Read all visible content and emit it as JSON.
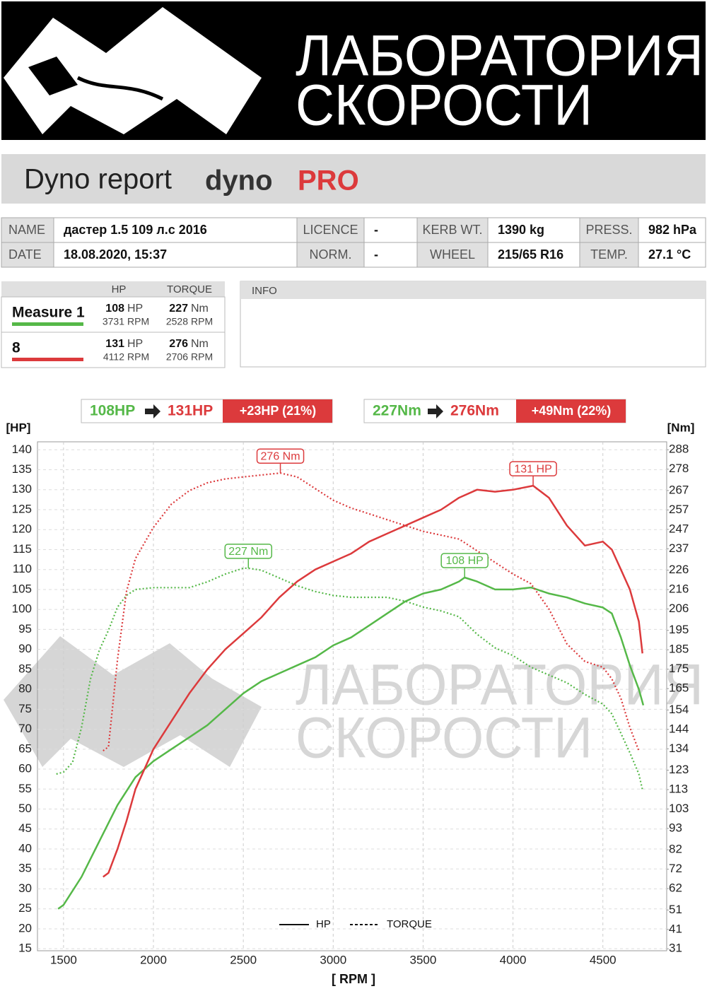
{
  "header": {
    "brand_line1": "ЛАБОРАТОРИЯ",
    "brand_line2": "СКОРОСТИ"
  },
  "report": {
    "title": "Dyno report",
    "brand_a": "dyno",
    "brand_b": "PRO"
  },
  "info_table": {
    "rows": [
      [
        "NAME",
        "дастер 1.5 109 л.с 2016",
        "LICENCE",
        "-",
        "KERB WT.",
        "1390 kg",
        "PRESS.",
        "982 hPa"
      ],
      [
        "DATE",
        "18.08.2020, 15:37",
        "NORM.",
        "-",
        "WHEEL",
        "215/65 R16",
        "TEMP.",
        "27.1 °C"
      ]
    ]
  },
  "measures": {
    "headers": [
      "HP",
      "TORQUE"
    ],
    "units": {
      "hp": "HP",
      "nm": "Nm",
      "rpm": "RPM"
    },
    "rows": [
      {
        "name": "Measure 1",
        "color": "#55b848",
        "hp": 108,
        "hp_rpm": 3731,
        "torque": 227,
        "torque_rpm": 2528
      },
      {
        "name": "8",
        "color": "#dc3a3c",
        "hp": 131,
        "hp_rpm": 4112,
        "torque": 276,
        "torque_rpm": 2706
      }
    ]
  },
  "info": {
    "title": "INFO"
  },
  "comparison": [
    {
      "before": "108HP",
      "after": "131HP",
      "delta": "+23HP  (21%)"
    },
    {
      "before": "227Nm",
      "after": "276Nm",
      "delta": "+49Nm  (22%)"
    }
  ],
  "chart_data": {
    "type": "line",
    "y_label": "[HP]",
    "y2_label": "[Nm]",
    "x_label": "[ RPM ]",
    "xlim": [
      1355,
      4855
    ],
    "xticks": [
      1500,
      2000,
      2500,
      3000,
      3500,
      4000,
      4500
    ],
    "ylim": [
      14.5,
      142
    ],
    "yticks": [
      15,
      20,
      25,
      30,
      35,
      40,
      45,
      50,
      55,
      60,
      65,
      70,
      75,
      80,
      85,
      90,
      95,
      100,
      105,
      110,
      115,
      120,
      125,
      130,
      135,
      140
    ],
    "y2lim": [
      30,
      292.1
    ],
    "y2ticks": [
      31,
      41,
      51,
      62,
      72,
      82,
      93,
      103,
      113,
      123,
      134,
      144,
      154,
      165,
      175,
      185,
      195,
      206,
      216,
      226,
      237,
      247,
      257,
      267,
      278,
      288
    ],
    "grid": true,
    "legend_position": "bottom",
    "legend": [
      {
        "name": "HP",
        "dash": false
      },
      {
        "name": "TORQUE",
        "dash": true
      }
    ],
    "series": [
      {
        "color": "#55b848",
        "dash": false,
        "x": [
          1470,
          1500,
          1600,
          1700,
          1800,
          1900,
          2000,
          2100,
          2200,
          2300,
          2400,
          2500,
          2600,
          2700,
          2800,
          2900,
          3000,
          3100,
          3200,
          3300,
          3400,
          3500,
          3600,
          3700,
          3731,
          3800,
          3900,
          4000,
          4100,
          4200,
          4300,
          4400,
          4500,
          4550,
          4600,
          4650,
          4700,
          4725
        ],
        "values": [
          25,
          26,
          33,
          42,
          51,
          58,
          62,
          65,
          68,
          71,
          75,
          79,
          82,
          84,
          86,
          88,
          91,
          93,
          96,
          99,
          102,
          104,
          105,
          107,
          108,
          107,
          105,
          105,
          105.5,
          104,
          103,
          101.5,
          100.5,
          99,
          93,
          86,
          80,
          76
        ]
      },
      {
        "color": "#dc3a3c",
        "dash": false,
        "x": [
          1720,
          1750,
          1800,
          1850,
          1900,
          2000,
          2100,
          2200,
          2300,
          2400,
          2500,
          2600,
          2700,
          2800,
          2900,
          3000,
          3100,
          3200,
          3300,
          3400,
          3500,
          3600,
          3700,
          3800,
          3900,
          4000,
          4112,
          4200,
          4300,
          4400,
          4500,
          4550,
          4600,
          4650,
          4700,
          4720
        ],
        "values": [
          33,
          34,
          40,
          47,
          55,
          65,
          72,
          79,
          85,
          90,
          94,
          98,
          103,
          107,
          110,
          112,
          114,
          117,
          119,
          121,
          123,
          125,
          128,
          130,
          129.5,
          130,
          131,
          128,
          121,
          116,
          117,
          115,
          110,
          105,
          97,
          89
        ]
      },
      {
        "color": "#55b848",
        "dash": true,
        "axis": "y2",
        "x": [
          1460,
          1500,
          1550,
          1600,
          1650,
          1700,
          1750,
          1800,
          1850,
          1900,
          2000,
          2100,
          2200,
          2300,
          2400,
          2500,
          2528,
          2600,
          2700,
          2800,
          2900,
          3000,
          3100,
          3200,
          3300,
          3400,
          3500,
          3600,
          3700,
          3800,
          3900,
          4000,
          4100,
          4200,
          4300,
          4400,
          4500,
          4550,
          4600,
          4650,
          4700,
          4720
        ],
        "values": [
          121,
          122,
          127,
          145,
          170,
          185,
          195,
          207,
          213,
          216,
          217,
          217,
          217,
          220,
          224,
          227,
          227,
          226,
          222,
          218,
          215,
          213,
          212,
          212,
          212,
          210,
          207,
          205,
          202,
          193,
          186,
          182,
          176,
          172,
          168,
          162,
          157,
          152,
          142,
          132,
          121,
          113
        ]
      },
      {
        "color": "#dc3a3c",
        "dash": true,
        "axis": "y2",
        "x": [
          1720,
          1750,
          1800,
          1850,
          1900,
          2000,
          2100,
          2200,
          2300,
          2400,
          2500,
          2600,
          2706,
          2800,
          2900,
          3000,
          3100,
          3200,
          3300,
          3400,
          3500,
          3600,
          3700,
          3800,
          3900,
          4000,
          4100,
          4200,
          4300,
          4400,
          4500,
          4550,
          4600,
          4650,
          4700
        ],
        "values": [
          133,
          135,
          180,
          215,
          232,
          248,
          260,
          267,
          271,
          273,
          274,
          275,
          276,
          274,
          268,
          262,
          258,
          255,
          252,
          249,
          246,
          244,
          242,
          236,
          230,
          224,
          219,
          206,
          188,
          179,
          176,
          170,
          160,
          145,
          133
        ]
      }
    ],
    "annotations": [
      {
        "text": "108 HP",
        "series": 0,
        "index": 24
      },
      {
        "text": "131 HP",
        "series": 1,
        "index": 26
      },
      {
        "text": "227 Nm",
        "series": 2,
        "index": 16
      },
      {
        "text": "276 Nm",
        "series": 3,
        "index": 12
      }
    ]
  }
}
